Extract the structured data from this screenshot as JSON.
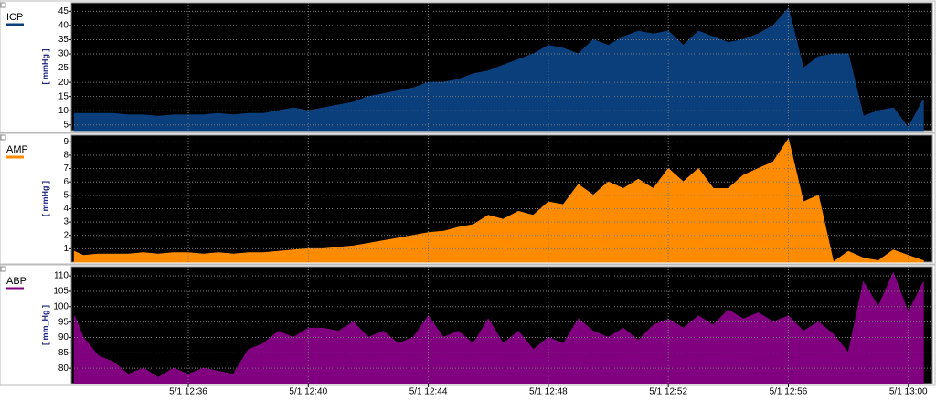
{
  "chart_data": [
    {
      "type": "area",
      "name": "ICP",
      "ylabel": "[ mmHg ]",
      "color": "#0b3f7c",
      "x": [
        752.2,
        752.5,
        753,
        753.5,
        754,
        754.5,
        755,
        755.5,
        756,
        756.5,
        757,
        757.5,
        758,
        758.5,
        759,
        759.5,
        760,
        760.5,
        761,
        761.5,
        762,
        762.5,
        763,
        763.5,
        764,
        764.5,
        765,
        765.5,
        766,
        766.5,
        767,
        767.5,
        768,
        768.5,
        769,
        769.5,
        770,
        770.5,
        771,
        771.5,
        772,
        772.5,
        773,
        773.5,
        774,
        774.5,
        775,
        775.5,
        776,
        776.5,
        777,
        777.5,
        778,
        778.5,
        779,
        779.5,
        780,
        780.5
      ],
      "values": [
        9,
        9,
        9,
        9,
        8.5,
        8.5,
        8,
        8.5,
        8.5,
        8.5,
        9,
        8.5,
        9,
        9,
        10,
        11,
        10,
        11,
        12,
        13,
        15,
        16,
        17,
        18,
        20,
        20,
        21,
        23,
        24,
        26,
        28,
        30,
        33,
        32,
        30,
        35,
        33,
        36,
        38,
        37,
        38,
        33,
        38,
        36,
        34,
        35,
        37,
        40,
        46,
        25,
        29,
        30,
        30,
        8,
        10,
        11,
        4,
        14
      ],
      "xlim": [
        752.1,
        780.8
      ],
      "ylim": [
        3,
        48
      ],
      "yticks": [
        5,
        10,
        15,
        20,
        25,
        30,
        35,
        40,
        45
      ],
      "grid": true
    },
    {
      "type": "area",
      "name": "AMP",
      "ylabel": "[ mmHg ]",
      "color": "#ff8c00",
      "x": [
        752.2,
        752.5,
        753,
        753.5,
        754,
        754.5,
        755,
        755.5,
        756,
        756.5,
        757,
        757.5,
        758,
        758.5,
        759,
        759.5,
        760,
        760.5,
        761,
        761.5,
        762,
        762.5,
        763,
        763.5,
        764,
        764.5,
        765,
        765.5,
        766,
        766.5,
        767,
        767.5,
        768,
        768.5,
        769,
        769.5,
        770,
        770.5,
        771,
        771.5,
        772,
        772.5,
        773,
        773.5,
        774,
        774.5,
        775,
        775.5,
        776,
        776.5,
        777,
        777.5,
        778,
        778.5,
        779,
        779.5,
        780,
        780.5
      ],
      "values": [
        0.8,
        0.5,
        0.6,
        0.6,
        0.6,
        0.7,
        0.6,
        0.7,
        0.7,
        0.6,
        0.7,
        0.6,
        0.7,
        0.7,
        0.8,
        0.9,
        1,
        1,
        1.1,
        1.2,
        1.4,
        1.6,
        1.8,
        2,
        2.2,
        2.3,
        2.6,
        2.8,
        3.5,
        3.2,
        3.8,
        3.5,
        4.5,
        4.3,
        5.8,
        5,
        6,
        5.5,
        6.2,
        5.5,
        7,
        6,
        7,
        5.5,
        5.5,
        6.5,
        7,
        7.5,
        9.2,
        4.5,
        5,
        0,
        0.8,
        0.3,
        0.1,
        0.9,
        0.5,
        0.1
      ],
      "xlim": [
        752.1,
        780.8
      ],
      "ylim": [
        0,
        9.5
      ],
      "yticks": [
        1,
        2,
        3,
        4,
        5,
        6,
        7,
        8,
        9
      ],
      "grid": true
    },
    {
      "type": "area",
      "name": "ABP",
      "ylabel": "[ mm_Hg ]",
      "color": "#800080",
      "x": [
        752.2,
        752.5,
        753,
        753.5,
        754,
        754.5,
        755,
        755.5,
        756,
        756.5,
        757,
        757.5,
        758,
        758.5,
        759,
        759.5,
        760,
        760.5,
        761,
        761.5,
        762,
        762.5,
        763,
        763.5,
        764,
        764.5,
        765,
        765.5,
        766,
        766.5,
        767,
        767.5,
        768,
        768.5,
        769,
        769.5,
        770,
        770.5,
        771,
        771.5,
        772,
        772.5,
        773,
        773.5,
        774,
        774.5,
        775,
        775.5,
        776,
        776.5,
        777,
        777.5,
        778,
        778.5,
        779,
        779.5,
        780,
        780.5
      ],
      "values": [
        97,
        90,
        84,
        82,
        78,
        80,
        77,
        80,
        78,
        80,
        79,
        78,
        86,
        88,
        92,
        90,
        93,
        93,
        92,
        95,
        90,
        92,
        88,
        90,
        97,
        90,
        92,
        88,
        96,
        88,
        92,
        86,
        90,
        88,
        96,
        92,
        90,
        93,
        89,
        94,
        96,
        93,
        97,
        94,
        99,
        96,
        98,
        95,
        97,
        92,
        95,
        91,
        85,
        108,
        100,
        111,
        98,
        108
      ],
      "xlim": [
        752.1,
        780.8
      ],
      "ylim": [
        75,
        113
      ],
      "yticks": [
        80,
        85,
        90,
        95,
        100,
        105,
        110
      ],
      "grid": true,
      "xticks": [
        {
          "value": 756,
          "label": "5/1 12:36"
        },
        {
          "value": 760,
          "label": "5/1 12:40"
        },
        {
          "value": 764,
          "label": "5/1 12:44"
        },
        {
          "value": 768,
          "label": "5/1 12:48"
        },
        {
          "value": 772,
          "label": "5/1 12:52"
        },
        {
          "value": 776,
          "label": "5/1 12:56"
        },
        {
          "value": 780,
          "label": "5/1 13:00"
        }
      ]
    }
  ]
}
